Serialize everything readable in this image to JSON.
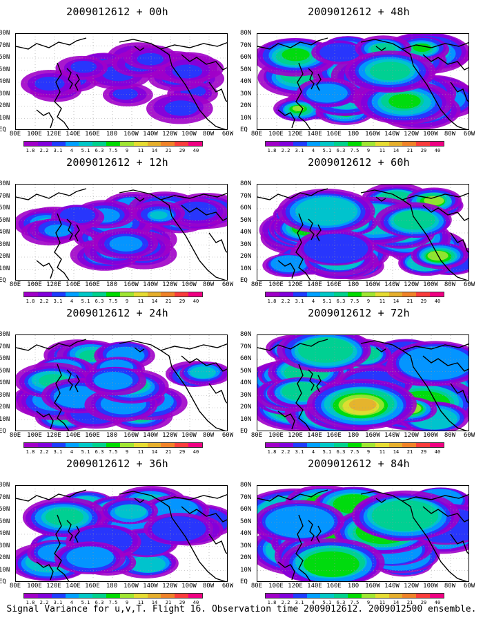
{
  "caption": "Signal Variance for u,v,T. Flight 16. Observation time 2009012612. 2009012500 ensemble.",
  "panels": [
    {
      "title": "2009012612 + 00h",
      "intensity": 0.25
    },
    {
      "title": "2009012612 + 12h",
      "intensity": 0.4
    },
    {
      "title": "2009012612 + 24h",
      "intensity": 0.5
    },
    {
      "title": "2009012612 + 36h",
      "intensity": 0.6
    },
    {
      "title": "2009012612 + 48h",
      "intensity": 0.65
    },
    {
      "title": "2009012612 + 60h",
      "intensity": 0.75
    },
    {
      "title": "2009012612 + 72h",
      "intensity": 0.85
    },
    {
      "title": "2009012612 + 84h",
      "intensity": 0.95
    }
  ],
  "lat_labels": [
    "80N",
    "70N",
    "60N",
    "50N",
    "40N",
    "30N",
    "20N",
    "10N",
    "EQ"
  ],
  "lon_labels": [
    "80E",
    "100E",
    "120E",
    "140E",
    "160E",
    "180",
    "160W",
    "140W",
    "120W",
    "100W",
    "80W",
    "60W"
  ],
  "colorbar": {
    "labels": [
      "1.8",
      "2.2",
      "3.1",
      "4",
      "5.1",
      "6.3",
      "7.5",
      "9",
      "11",
      "14",
      "21",
      "29",
      "40"
    ],
    "colors": [
      "#a000c8",
      "#8200dc",
      "#1e3cff",
      "#00a0ff",
      "#00c8c8",
      "#00d28c",
      "#00dc00",
      "#a0e632",
      "#e6dc32",
      "#e6af2d",
      "#f08228",
      "#fa3c3c",
      "#f00082"
    ]
  }
}
